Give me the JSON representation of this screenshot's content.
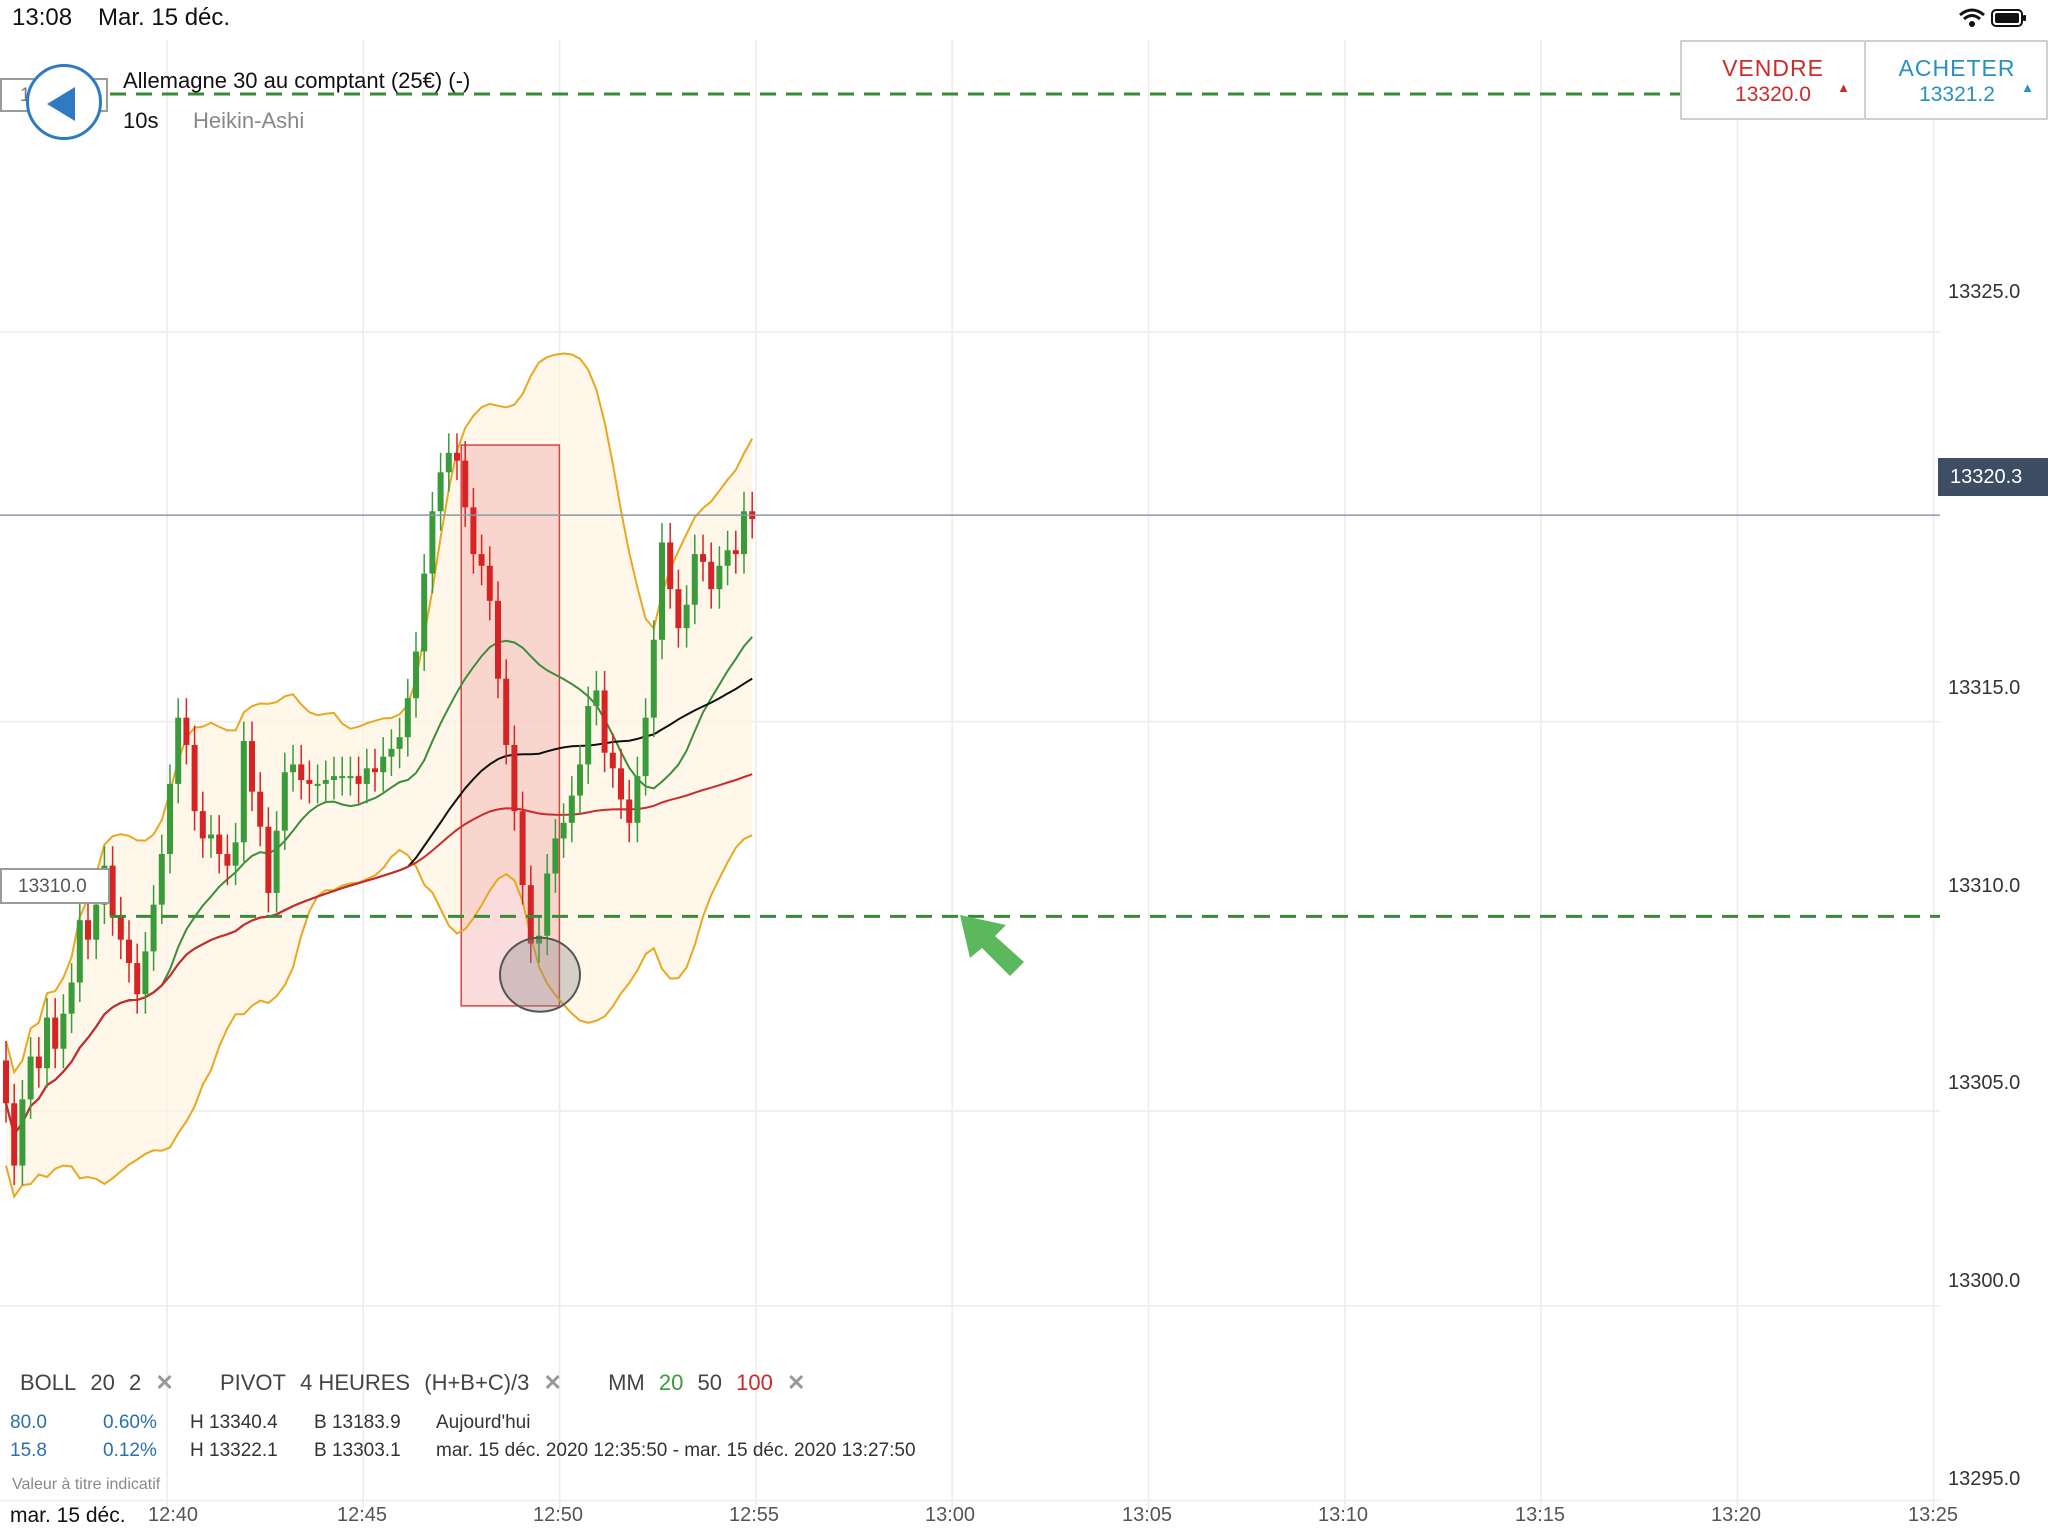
{
  "status_bar": {
    "time": "13:08",
    "date": "Mar. 15 déc."
  },
  "header": {
    "left_stub": "1",
    "instrument": "Allemagne 30 au comptant (25€) (-)",
    "timeframe": "10s",
    "chart_type": "Heikin-Ashi"
  },
  "trade_panel": {
    "sell_label": "VENDRE",
    "sell_price": "13320.0",
    "buy_label": "ACHETER",
    "buy_price": "13321.2",
    "arrow": "▲"
  },
  "price_axis": {
    "labels": [
      "13325.0",
      "13320.3",
      "13315.0",
      "13310.0",
      "13305.0",
      "13300.0",
      "13295.0"
    ],
    "current_price": "13320.3",
    "level_line": "13310.0"
  },
  "time_axis": {
    "date": "mar. 15 déc.",
    "labels": [
      "12:40",
      "12:45",
      "12:50",
      "12:55",
      "13:00",
      "13:05",
      "13:10",
      "13:15",
      "13:20",
      "13:25"
    ]
  },
  "legend": {
    "boll": "BOLL",
    "boll_period": "20",
    "boll_dev": "2",
    "pivot": "PIVOT",
    "pivot_period": "4 HEURES",
    "pivot_formula": "(H+B+C)/3",
    "ma": "MM",
    "ma_1": "20",
    "ma_2": "50",
    "ma_3": "100",
    "close": "✕"
  },
  "info": {
    "row1": {
      "a": "80.0",
      "b": "0.60%",
      "h": "H 13340.4",
      "l": "B 13183.9",
      "period": "Aujourd'hui"
    },
    "row2": {
      "a": "15.8",
      "b": "0.12%",
      "h": "H 13322.1",
      "l": "B 13303.1",
      "period": "mar. 15 déc. 2020 12:35:50 - mar. 15 déc. 2020 13:27:50"
    }
  },
  "disclaimer": "Valeur à titre indicatif",
  "colors": {
    "bull": "#3a9b3a",
    "bear": "#d62424",
    "boll_band": "#e8a820",
    "ma20": "#3a8f3a",
    "ma50": "#111111",
    "ma100": "#cc2b2b",
    "level": "#3a8a3a",
    "accent": "#2f7bc2"
  },
  "chart_data": {
    "type": "candlestick",
    "y_range": [
      13294.5,
      13332.5
    ],
    "x_range": [
      "12:35:50",
      "13:27:50"
    ],
    "candles_open_close": [
      [
        13306.3,
        13305.2
      ],
      [
        13305.2,
        13303.6
      ],
      [
        13303.6,
        13305.3
      ],
      [
        13305.3,
        13306.4
      ],
      [
        13306.4,
        13306.1
      ],
      [
        13306.1,
        13307.4
      ],
      [
        13307.4,
        13306.6
      ],
      [
        13306.6,
        13307.5
      ],
      [
        13307.5,
        13308.3
      ],
      [
        13308.3,
        13309.9
      ],
      [
        13309.9,
        13309.4
      ],
      [
        13309.4,
        13310.3
      ],
      [
        13310.3,
        13311.3
      ],
      [
        13311.3,
        13310.0
      ],
      [
        13310.0,
        13309.4
      ],
      [
        13309.4,
        13308.8
      ],
      [
        13308.8,
        13308.0
      ],
      [
        13308.0,
        13309.1
      ],
      [
        13309.1,
        13310.3
      ],
      [
        13310.3,
        13311.6
      ],
      [
        13311.6,
        13313.4
      ],
      [
        13313.4,
        13315.1
      ],
      [
        13315.1,
        13314.4
      ],
      [
        13314.4,
        13312.7
      ],
      [
        13312.7,
        13312.0
      ],
      [
        13312.0,
        13312.1
      ],
      [
        13312.1,
        13311.6
      ],
      [
        13311.6,
        13311.3
      ],
      [
        13311.3,
        13311.9
      ],
      [
        13311.9,
        13314.5
      ],
      [
        13314.5,
        13313.2
      ],
      [
        13313.2,
        13312.3
      ],
      [
        13312.3,
        13310.6
      ],
      [
        13310.6,
        13312.2
      ],
      [
        13312.2,
        13313.7
      ],
      [
        13313.7,
        13313.9
      ],
      [
        13313.9,
        13313.5
      ],
      [
        13313.5,
        13313.4
      ],
      [
        13313.4,
        13313.4
      ],
      [
        13313.4,
        13313.5
      ],
      [
        13313.5,
        13313.6
      ],
      [
        13313.6,
        13313.6
      ],
      [
        13313.6,
        13313.6
      ],
      [
        13313.6,
        13313.4
      ],
      [
        13313.4,
        13313.8
      ],
      [
        13313.8,
        13313.7
      ],
      [
        13313.7,
        13314.1
      ],
      [
        13314.1,
        13314.3
      ],
      [
        13314.3,
        13314.6
      ],
      [
        13314.6,
        13315.6
      ],
      [
        13315.6,
        13316.8
      ],
      [
        13316.8,
        13318.8
      ],
      [
        13318.8,
        13320.4
      ],
      [
        13320.4,
        13321.4
      ],
      [
        13321.4,
        13321.9
      ],
      [
        13321.9,
        13321.7
      ],
      [
        13321.7,
        13320.5
      ],
      [
        13320.5,
        13319.3
      ],
      [
        13319.3,
        13319.0
      ],
      [
        13319.0,
        13318.1
      ],
      [
        13318.1,
        13316.1
      ],
      [
        13316.1,
        13314.4
      ],
      [
        13314.4,
        13312.7
      ],
      [
        13312.7,
        13310.8
      ],
      [
        13310.8,
        13309.3
      ],
      [
        13309.3,
        13309.5
      ],
      [
        13309.5,
        13311.1
      ],
      [
        13311.1,
        13312.0
      ],
      [
        13312.0,
        13312.4
      ],
      [
        13312.4,
        13313.1
      ],
      [
        13313.1,
        13313.9
      ],
      [
        13313.9,
        13315.4
      ],
      [
        13315.4,
        13315.8
      ],
      [
        13315.8,
        13314.2
      ],
      [
        13314.2,
        13313.8
      ],
      [
        13313.8,
        13313.0
      ],
      [
        13313.0,
        13312.4
      ],
      [
        13312.4,
        13313.6
      ],
      [
        13313.6,
        13315.1
      ],
      [
        13315.1,
        13317.1
      ],
      [
        13317.1,
        13319.6
      ],
      [
        13319.6,
        13318.4
      ],
      [
        13318.4,
        13317.4
      ],
      [
        13317.4,
        13318.0
      ],
      [
        13318.0,
        13319.3
      ],
      [
        13319.3,
        13319.1
      ],
      [
        13319.1,
        13318.4
      ],
      [
        13318.4,
        13319.0
      ],
      [
        13319.0,
        13319.4
      ],
      [
        13319.4,
        13319.3
      ],
      [
        13319.3,
        13320.4
      ],
      [
        13320.4,
        13320.2
      ]
    ]
  }
}
